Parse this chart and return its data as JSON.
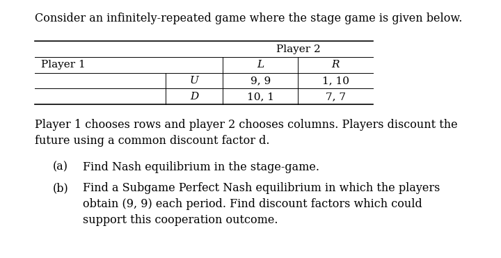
{
  "title_text": "Consider an infinitely-repeated game where the stage game is given below.",
  "title_fontsize": 11.5,
  "body_text": "Player 1 chooses rows and player 2 chooses columns. Players discount the\nfuture using a common discount factor d.",
  "body_fontsize": 11.5,
  "item_a": "Find Nash equilibrium in the stage-game.",
  "item_b": "Find a Subgame Perfect Nash equilibrium in which the players\nobtain (9, 9) each period. Find discount factors which could\nsupport this cooperation outcome.",
  "item_fontsize": 11.5,
  "table": {
    "player2_label": "Player 2",
    "player1_label": "Player 1",
    "col_labels": [
      "L",
      "R"
    ],
    "row_labels": [
      "U",
      "D"
    ],
    "cells": [
      [
        "9, 9",
        "1, 10"
      ],
      [
        "10, 1",
        "7, 7"
      ]
    ]
  },
  "bg_color": "#ffffff",
  "text_color": "#000000",
  "font_family": "DejaVu Serif"
}
